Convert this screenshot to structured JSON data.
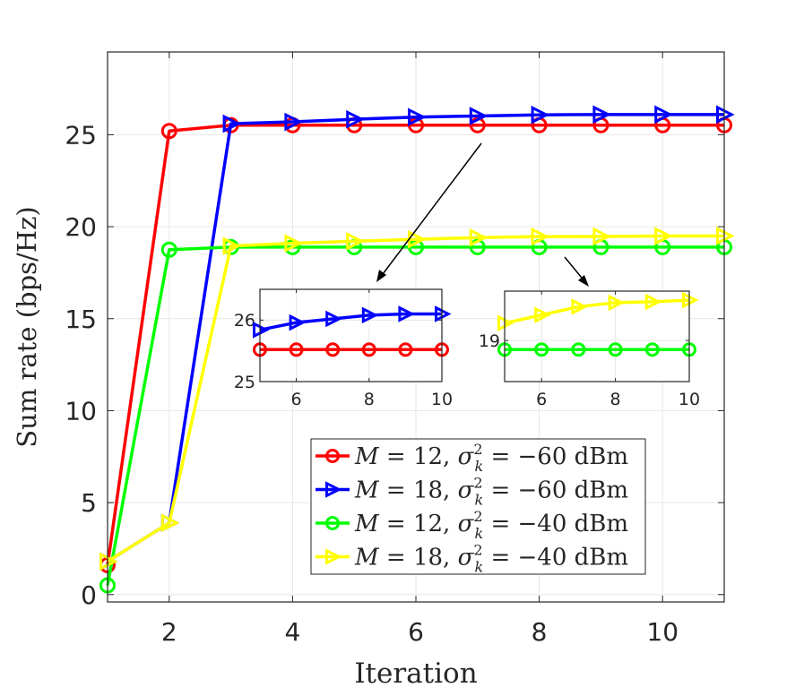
{
  "chart_data": [
    {
      "type": "line",
      "xlabel": "Iteration",
      "ylabel": "Sum rate (bps/Hz)",
      "xlim": [
        1,
        11
      ],
      "ylim": [
        -0.4,
        29.5
      ],
      "xticks": [
        2,
        4,
        6,
        8,
        10
      ],
      "yticks": [
        0,
        5,
        10,
        15,
        20,
        25
      ],
      "grid": true,
      "legend_position": "bottom-right",
      "x": [
        1,
        2,
        3,
        4,
        5,
        6,
        7,
        8,
        9,
        10,
        11
      ],
      "series": [
        {
          "M": "12",
          "sigma": "−60",
          "unit": "dBm",
          "color": "#ff0000",
          "marker": "circle",
          "values": [
            1.6,
            25.2,
            25.52,
            25.52,
            25.52,
            25.52,
            25.52,
            25.52,
            25.52,
            25.52,
            25.52
          ]
        },
        {
          "M": "18",
          "sigma": "−60",
          "unit": "dBm",
          "color": "#0000ff",
          "marker": "triangle-right",
          "values": [
            1.8,
            3.9,
            25.6,
            25.7,
            25.84,
            25.96,
            26.02,
            26.08,
            26.1,
            26.1,
            26.1
          ]
        },
        {
          "M": "12",
          "sigma": "−40",
          "unit": "dBm",
          "color": "#00ff00",
          "marker": "circle",
          "values": [
            0.5,
            18.75,
            18.89,
            18.89,
            18.89,
            18.89,
            18.89,
            18.89,
            18.89,
            18.89,
            18.89
          ]
        },
        {
          "M": "18",
          "sigma": "−40",
          "unit": "dBm",
          "color": "#ffff00",
          "marker": "triangle-right",
          "values": [
            1.8,
            3.9,
            18.95,
            19.1,
            19.21,
            19.31,
            19.41,
            19.46,
            19.47,
            19.49,
            19.5
          ]
        }
      ]
    },
    {
      "type": "line",
      "role": "inset",
      "xlim": [
        5,
        10
      ],
      "ylim": [
        25,
        26.5
      ],
      "xticks": [
        6,
        8,
        10
      ],
      "yticks": [
        25,
        26
      ],
      "series_indices": [
        0,
        1
      ]
    },
    {
      "type": "line",
      "role": "inset",
      "xlim": [
        5,
        10
      ],
      "ylim": [
        18.5,
        19.6
      ],
      "xticks": [
        6,
        8,
        10
      ],
      "yticks": [
        19
      ],
      "series_indices": [
        2,
        3
      ]
    }
  ]
}
